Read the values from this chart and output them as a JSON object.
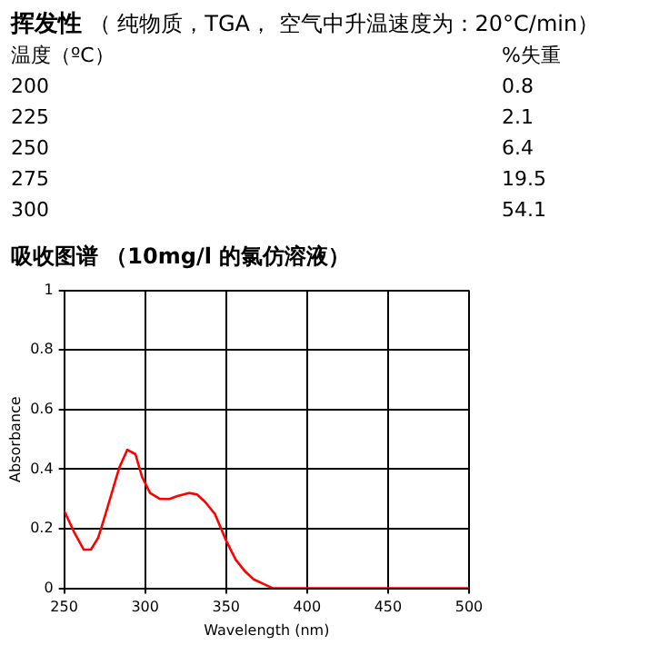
{
  "chart_data": {
    "type": "line",
    "title": "吸收图谱 （10mg/l 的氯仿溶液）",
    "xlabel": "Wavelength (nm)",
    "ylabel": "Absorbance",
    "annotations": [
      "挥发性",
      "（ 纯物质，TGA， 空气中升温速度为：20°C/min）",
      "温度（ºC）",
      "%失重",
      "200",
      "0.8",
      "225",
      "2.1",
      "250",
      "6.4",
      "275",
      "19.5",
      "300",
      "54.1"
    ],
    "series": [
      {
        "color": "#ff0000",
        "x": [
          250,
          256,
          262,
          266.5,
          271,
          275,
          281,
          284,
          289,
          294,
          298,
          303,
          309,
          315,
          320,
          327,
          332,
          337,
          343,
          350,
          356,
          362,
          367,
          375,
          379,
          400,
          450,
          500
        ],
        "values": [
          0.26,
          0.19,
          0.13,
          0.13,
          0.17,
          0.24,
          0.35,
          0.405,
          0.465,
          0.45,
          0.375,
          0.32,
          0.3,
          0.3,
          0.31,
          0.32,
          0.315,
          0.29,
          0.25,
          0.16,
          0.095,
          0.055,
          0.03,
          0.01,
          0,
          0,
          0,
          0
        ]
      }
    ],
    "xlim": [
      250,
      500
    ],
    "xticks": [
      250,
      300,
      350,
      400,
      450,
      500
    ],
    "ylim": [
      0,
      1
    ],
    "yticks": [
      0,
      0.2,
      0.4,
      0.6,
      0.8,
      1
    ],
    "grid": true,
    "marker": "none",
    "line_style": "solid"
  }
}
